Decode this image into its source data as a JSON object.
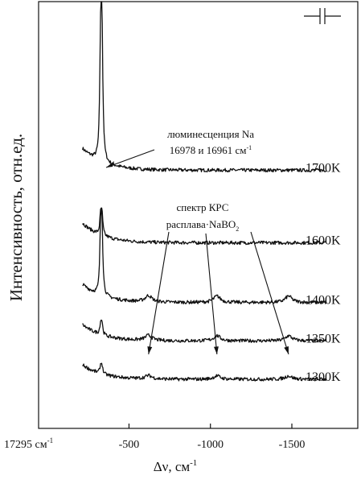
{
  "chart_data": {
    "type": "line",
    "title": "",
    "ylabel": "Интенсивность, отн.ед.",
    "xlabel": "Δν, см",
    "xlabel_sup": "-1",
    "xlim": [
      -200,
      -1700
    ],
    "x_ticks": [
      {
        "value": -500,
        "label": "-500"
      },
      {
        "value": -1000,
        "label": "-1000"
      },
      {
        "value": -1500,
        "label": "-1500"
      }
    ],
    "x_origin_label": "17295 см",
    "x_origin_label_sup": "-1",
    "symbol": "-||-",
    "annotations": {
      "luminescence": {
        "line1": "люминесценция Na",
        "line2_main": "16978 и 16961 см",
        "line2_sup": "-1",
        "target_x": -330
      },
      "raman": {
        "line1": "спектр КРС",
        "line2_main": "расплава·NaBO",
        "line2_sub": "2",
        "targets_x": [
          -620,
          -1040,
          -1480
        ]
      }
    },
    "series": [
      {
        "name": "1700K",
        "baseline": 0.605,
        "peak_height": 0.55,
        "raman": 0.0
      },
      {
        "name": "1600K",
        "baseline": 0.435,
        "peak_height": 0.09,
        "raman": 0.0
      },
      {
        "name": "1400K",
        "baseline": 0.295,
        "peak_height": 0.29,
        "raman": 0.015
      },
      {
        "name": "1350K",
        "baseline": 0.205,
        "peak_height": 0.05,
        "raman": 0.012
      },
      {
        "name": "1300K",
        "baseline": 0.115,
        "peak_height": 0.035,
        "raman": 0.008
      }
    ]
  }
}
